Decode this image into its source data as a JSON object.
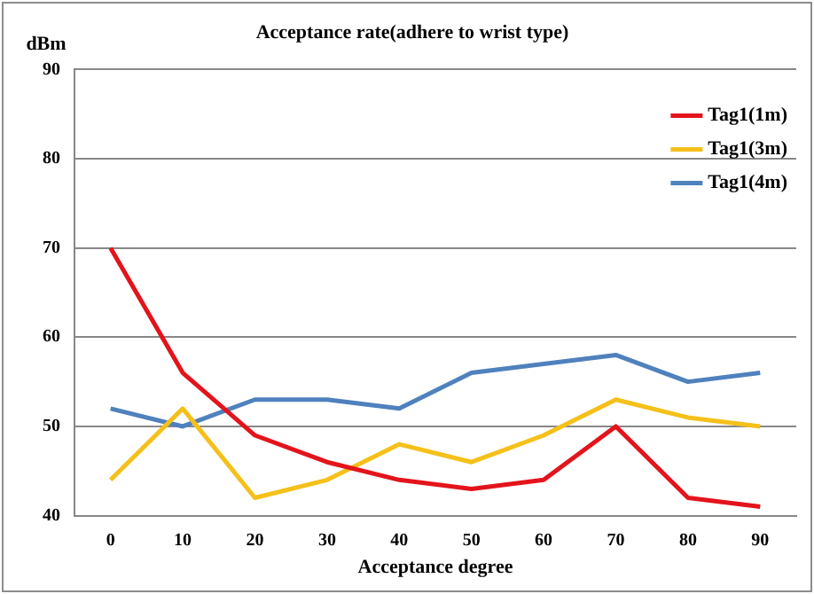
{
  "chart_data": {
    "type": "line",
    "title": "Acceptance rate(adhere to wrist type)",
    "xlabel": "Acceptance degree",
    "ylabel": "dBm",
    "categories": [
      "0",
      "10",
      "20",
      "30",
      "40",
      "50",
      "60",
      "70",
      "80",
      "90"
    ],
    "series": [
      {
        "name": "Tag1(1m)",
        "color": "#e3141b",
        "values": [
          70,
          56,
          49,
          46,
          44,
          43,
          44,
          50,
          42,
          41
        ]
      },
      {
        "name": "Tag1(3m)",
        "color": "#f5c01a",
        "values": [
          44,
          52,
          42,
          44,
          48,
          46,
          49,
          53,
          51,
          50
        ]
      },
      {
        "name": "Tag1(4m)",
        "color": "#4f81bd",
        "values": [
          52,
          50,
          53,
          53,
          52,
          56,
          57,
          58,
          55,
          56
        ]
      }
    ],
    "ylim": [
      40,
      90
    ],
    "yticks": [
      40,
      50,
      60,
      70,
      80,
      90
    ],
    "grid": "y",
    "legend": "top right",
    "marker": "none",
    "line_style": "solid"
  }
}
